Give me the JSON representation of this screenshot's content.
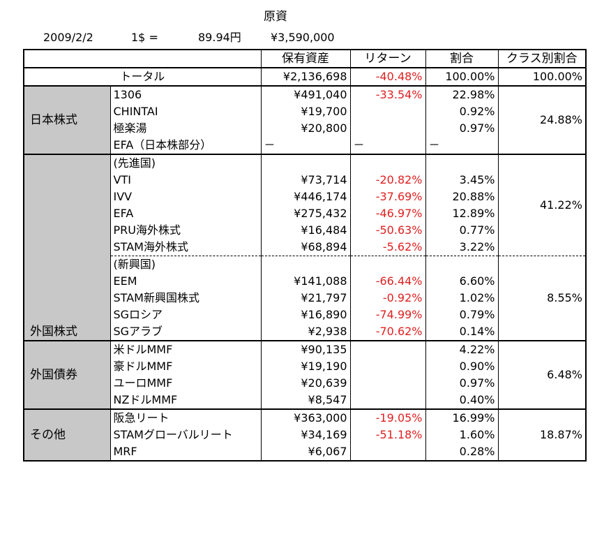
{
  "header": {
    "title": "原資",
    "date": "2009/2/2",
    "rate_label": "1$ =",
    "rate_value": "89.94円",
    "principal": "¥3,590,000"
  },
  "columns": [
    "保有資産",
    "リターン",
    "割合",
    "クラス別割合"
  ],
  "total": {
    "label": "トータル",
    "holding": "¥2,136,698",
    "return": "-40.48%",
    "share": "100.00%",
    "class_share": "100.00%"
  },
  "classes": [
    {
      "name": "日本株式",
      "class_share": "24.88%",
      "rows": [
        {
          "name": "1306",
          "holding": "¥491,040",
          "return": "-33.54%",
          "share": "22.98%"
        },
        {
          "name": "CHINTAI",
          "holding": "¥19,700",
          "return": "",
          "share": "0.92%"
        },
        {
          "name": "極楽湯",
          "holding": "¥20,800",
          "return": "",
          "share": "0.97%"
        },
        {
          "name": "EFA（日本株部分）",
          "holding": "－",
          "return": "－",
          "share": "－"
        }
      ]
    },
    {
      "name": "外国株式",
      "groups": [
        {
          "label": "(先進国)",
          "class_share": "41.22%",
          "rows": [
            {
              "name": "VTI",
              "holding": "¥73,714",
              "return": "-20.82%",
              "share": "3.45%"
            },
            {
              "name": "IVV",
              "holding": "¥446,174",
              "return": "-37.69%",
              "share": "20.88%"
            },
            {
              "name": "EFA",
              "holding": "¥275,432",
              "return": "-46.97%",
              "share": "12.89%"
            },
            {
              "name": "PRU海外株式",
              "holding": "¥16,484",
              "return": "-50.63%",
              "share": "0.77%"
            },
            {
              "name": "STAM海外株式",
              "holding": "¥68,894",
              "return": "-5.62%",
              "share": "3.22%"
            }
          ]
        },
        {
          "label": "(新興国)",
          "class_share": "8.55%",
          "rows": [
            {
              "name": "EEM",
              "holding": "¥141,088",
              "return": "-66.44%",
              "share": "6.60%"
            },
            {
              "name": "STAM新興国株式",
              "holding": "¥21,797",
              "return": "-0.92%",
              "share": "1.02%"
            },
            {
              "name": "SGロシア",
              "holding": "¥16,890",
              "return": "-74.99%",
              "share": "0.79%"
            },
            {
              "name": "SGアラブ",
              "holding": "¥2,938",
              "return": "-70.62%",
              "share": "0.14%"
            }
          ]
        }
      ]
    },
    {
      "name": "外国債券",
      "class_share": "6.48%",
      "rows": [
        {
          "name": "米ドルMMF",
          "holding": "¥90,135",
          "return": "",
          "share": "4.22%"
        },
        {
          "name": "豪ドルMMF",
          "holding": "¥19,190",
          "return": "",
          "share": "0.90%"
        },
        {
          "name": "ユーロMMF",
          "holding": "¥20,639",
          "return": "",
          "share": "0.97%"
        },
        {
          "name": "NZドルMMF",
          "holding": "¥8,547",
          "return": "",
          "share": "0.40%"
        }
      ]
    },
    {
      "name": "その他",
      "class_share": "18.87%",
      "rows": [
        {
          "name": "阪急リート",
          "holding": "¥363,000",
          "return": "-19.05%",
          "share": "16.99%"
        },
        {
          "name": "STAMグローバルリート",
          "holding": "¥34,169",
          "return": "-51.18%",
          "share": "1.60%"
        },
        {
          "name": "MRF",
          "holding": "¥6,067",
          "return": "",
          "share": "0.28%"
        }
      ]
    }
  ]
}
